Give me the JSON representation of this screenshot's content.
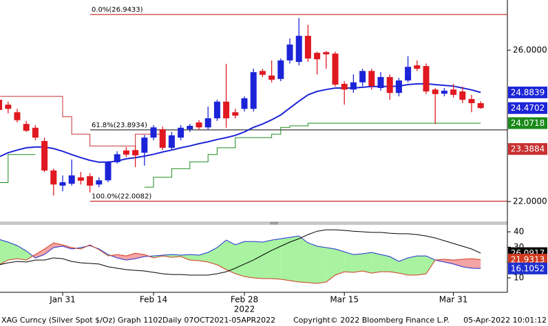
{
  "chart_data": [
    {
      "type": "candlestick",
      "categories": [
        null,
        null,
        null,
        null,
        null,
        null,
        null,
        "Jan 31",
        null,
        null,
        null,
        null,
        null,
        null,
        null,
        null,
        null,
        "Feb 14",
        null,
        null,
        null,
        null,
        null,
        null,
        null,
        null,
        null,
        "Feb 28",
        null,
        null,
        null,
        null,
        null,
        null,
        null,
        null,
        null,
        null,
        "Mar 15",
        null,
        null,
        null,
        null,
        null,
        null,
        null,
        null,
        null,
        null,
        null,
        "Mar 31",
        null,
        null,
        null
      ],
      "year_label": "2022",
      "open": [
        24.69,
        24.56,
        24.36,
        24.05,
        23.95,
        23.6,
        22.82,
        22.42,
        22.47,
        22.64,
        22.67,
        22.45,
        22.56,
        23.04,
        23.35,
        23.36,
        23.29,
        23.69,
        23.91,
        23.42,
        23.69,
        23.91,
        24.09,
        23.96,
        24.2,
        24.64,
        24.36,
        24.45,
        24.45,
        25.45,
        25.33,
        25.24,
        25.73,
        25.69,
        26.38,
        25.93,
        25.95,
        25.91,
        25.11,
        24.96,
        25.15,
        25.45,
        25.0,
        25.29,
        24.87,
        25.2,
        25.6,
        25.58,
        24.96,
        24.85,
        24.96,
        24.91,
        24.71,
        24.6
      ],
      "high": [
        24.82,
        24.64,
        24.45,
        24.13,
        24.02,
        23.69,
        22.87,
        22.69,
        23.11,
        22.78,
        22.75,
        22.64,
        23.07,
        23.33,
        23.44,
        23.47,
        23.76,
        24.02,
        23.98,
        23.84,
        24.02,
        24.05,
        24.15,
        24.51,
        24.69,
        25.64,
        24.45,
        24.78,
        25.51,
        25.51,
        25.73,
        25.78,
        26.31,
        26.85,
        26.67,
        25.96,
        25.98,
        25.96,
        25.18,
        25.36,
        25.51,
        25.51,
        25.42,
        25.36,
        25.27,
        25.84,
        25.73,
        25.65,
        25.0,
        25.0,
        25.11,
        25.04,
        24.82,
        24.65
      ],
      "low": [
        24.33,
        24.33,
        24.09,
        23.84,
        23.62,
        22.78,
        22.16,
        22.27,
        22.42,
        22.45,
        22.24,
        22.38,
        22.51,
        23.0,
        23.18,
        22.91,
        22.95,
        23.62,
        23.36,
        23.36,
        23.62,
        23.84,
        23.91,
        23.91,
        24.13,
        23.95,
        24.2,
        24.38,
        24.38,
        25.29,
        25.15,
        25.18,
        25.65,
        25.6,
        25.69,
        25.36,
        25.51,
        25.04,
        24.56,
        24.87,
        25.05,
        24.96,
        24.93,
        24.69,
        24.78,
        25.15,
        25.45,
        24.84,
        24.05,
        24.78,
        24.75,
        24.6,
        24.36,
        24.45
      ],
      "close": [
        24.42,
        24.45,
        24.15,
        23.87,
        23.69,
        22.82,
        22.45,
        22.51,
        22.69,
        22.55,
        22.42,
        22.56,
        23.04,
        23.25,
        23.24,
        23.22,
        23.69,
        23.96,
        23.42,
        23.75,
        23.95,
        24.0,
        23.96,
        24.2,
        24.64,
        24.2,
        24.27,
        24.73,
        25.42,
        25.35,
        25.22,
        25.73,
        26.15,
        26.38,
        25.78,
        25.76,
        25.89,
        25.09,
        24.96,
        25.15,
        25.45,
        25.05,
        25.29,
        24.87,
        25.2,
        25.56,
        25.51,
        24.91,
        24.84,
        24.93,
        24.82,
        24.69,
        24.6,
        24.4702
      ],
      "up_color": "#1c24d8",
      "down_color": "#e01820",
      "close_box": true,
      "ylim": [
        21.473,
        27.327
      ],
      "yticks": [
        {
          "value": 22,
          "label": "22.0000"
        },
        {
          "value": 26,
          "label": "26.0000"
        }
      ],
      "series": [
        {
          "color": "#1c24d8",
          "step": false,
          "box": true,
          "values": [
            23.18,
            23.29,
            23.36,
            23.42,
            23.44,
            23.44,
            23.4,
            23.33,
            23.24,
            23.16,
            23.09,
            23.04,
            23.04,
            23.07,
            23.13,
            23.16,
            23.2,
            23.25,
            23.31,
            23.36,
            23.42,
            23.47,
            23.53,
            23.58,
            23.64,
            23.69,
            23.75,
            23.84,
            23.96,
            24.05,
            24.16,
            24.29,
            24.47,
            24.65,
            24.82,
            24.91,
            24.96,
            25.0,
            25.0,
            25.0,
            25.02,
            25.04,
            25.04,
            25.04,
            25.05,
            25.09,
            25.11,
            25.11,
            25.09,
            25.07,
            25.05,
            25.0,
            24.95,
            24.8839
          ]
        },
        {
          "color": "#c83030",
          "step": true,
          "box": true,
          "values": [
            24.78,
            24.78,
            24.78,
            24.78,
            24.78,
            24.78,
            24.78,
            24.24,
            23.78,
            23.78,
            23.47,
            23.47,
            23.47,
            23.47,
            23.47,
            23.78,
            23.78,
            23.78,
            23.78,
            null,
            null,
            null,
            null,
            null,
            null,
            null,
            null,
            null,
            null,
            null,
            null,
            null,
            null,
            null,
            null,
            null,
            null,
            null,
            null,
            null,
            null,
            null,
            null,
            null,
            null,
            null,
            null,
            null,
            null,
            null,
            null,
            null,
            null,
            23.3884
          ]
        },
        {
          "color": "#1a8a1a",
          "step": true,
          "box": true,
          "values": [
            22.5,
            23.24,
            23.24,
            23.24,
            23.24,
            null,
            null,
            null,
            null,
            null,
            null,
            null,
            null,
            null,
            null,
            null,
            22.38,
            22.64,
            22.64,
            22.87,
            22.87,
            23.05,
            23.05,
            23.24,
            23.42,
            23.42,
            23.69,
            23.69,
            23.69,
            23.69,
            23.78,
            23.96,
            24.0,
            24.0,
            24.0718,
            24.0718,
            24.0718,
            24.0718,
            24.0718,
            24.0718,
            24.0718,
            24.0718,
            24.0718,
            24.0718,
            24.0718,
            24.0718,
            24.0718,
            24.0718,
            24.0718,
            24.0718,
            24.0718,
            24.0718,
            24.0718,
            24.0718
          ]
        }
      ],
      "levels": [
        {
          "value": 26.9433,
          "label": "0.0%(26.9433)",
          "color": "#c00000"
        },
        {
          "value": 23.8934,
          "label": "61.8%(23.8934)",
          "color": "#000000"
        },
        {
          "value": 22.0082,
          "label": "100.0%(22.0082)",
          "color": "#c00000"
        }
      ]
    },
    {
      "type": "line",
      "ylim": [
        0.6,
        44.5
      ],
      "yticks": [
        10,
        20,
        30,
        40
      ],
      "fill_colors": {
        "above": "#a8f2a0",
        "below": "#f4a4a4"
      },
      "series": [
        {
          "color": "#2030d0",
          "values": [
            35.1,
            33.3,
            31.0,
            27.5,
            23.0,
            25.2,
            29.7,
            30.6,
            28.8,
            29.7,
            31.0,
            28.8,
            25.2,
            23.0,
            21.6,
            22.5,
            23.9,
            24.3,
            24.8,
            25.2,
            24.8,
            25.2,
            24.8,
            26.6,
            29.7,
            34.6,
            31.5,
            33.7,
            33.7,
            33.3,
            34.6,
            35.5,
            36.4,
            37.3,
            32.8,
            30.6,
            29.7,
            28.8,
            27.0,
            25.2,
            25.7,
            26.6,
            25.2,
            23.9,
            20.7,
            23.0,
            24.3,
            24.3,
            21.6,
            20.3,
            19.0,
            17.2,
            16.3,
            16.1052
          ]
        },
        {
          "color": "#d03a20",
          "values": [
            18.5,
            21.6,
            22.5,
            21.6,
            25.2,
            28.8,
            32.8,
            31.5,
            29.7,
            28.8,
            31.5,
            28.4,
            24.3,
            25.2,
            24.3,
            26.1,
            25.2,
            23.0,
            24.3,
            23.4,
            23.9,
            21.6,
            21.2,
            20.3,
            18.5,
            15.4,
            12.7,
            10.9,
            10.0,
            9.5,
            9.5,
            9.1,
            8.2,
            7.3,
            6.9,
            6.4,
            7.3,
            11.8,
            14.0,
            13.6,
            14.5,
            13.1,
            14.0,
            14.0,
            13.1,
            11.8,
            11.8,
            12.7,
            21.6,
            22.1,
            21.6,
            22.1,
            22.5,
            21.9313
          ]
        },
        {
          "color": "#000000",
          "values": [
            18.5,
            19.8,
            20.7,
            20.3,
            21.6,
            21.6,
            23.0,
            22.5,
            20.7,
            19.8,
            19.4,
            19.0,
            17.2,
            16.3,
            15.4,
            14.9,
            14.5,
            13.6,
            12.7,
            12.2,
            12.2,
            11.8,
            11.8,
            11.8,
            12.7,
            14.0,
            16.3,
            19.0,
            21.6,
            24.8,
            27.9,
            30.6,
            33.3,
            35.5,
            38.2,
            40.4,
            41.3,
            41.3,
            40.9,
            40.4,
            40.0,
            39.6,
            39.6,
            39.1,
            38.7,
            38.7,
            38.2,
            37.3,
            36.0,
            34.2,
            32.4,
            30.6,
            28.8,
            26.0917
          ]
        }
      ]
    }
  ],
  "footer": {
    "left": "XAG Curncy (Silver Spot $/Oz) Graph 1102",
    "middle": "Daily 07OCT2021-05APR2022",
    "center": "Copyright© 2022 Bloomberg Finance L.P.",
    "right": "05-Apr-2022 10:01:12"
  }
}
